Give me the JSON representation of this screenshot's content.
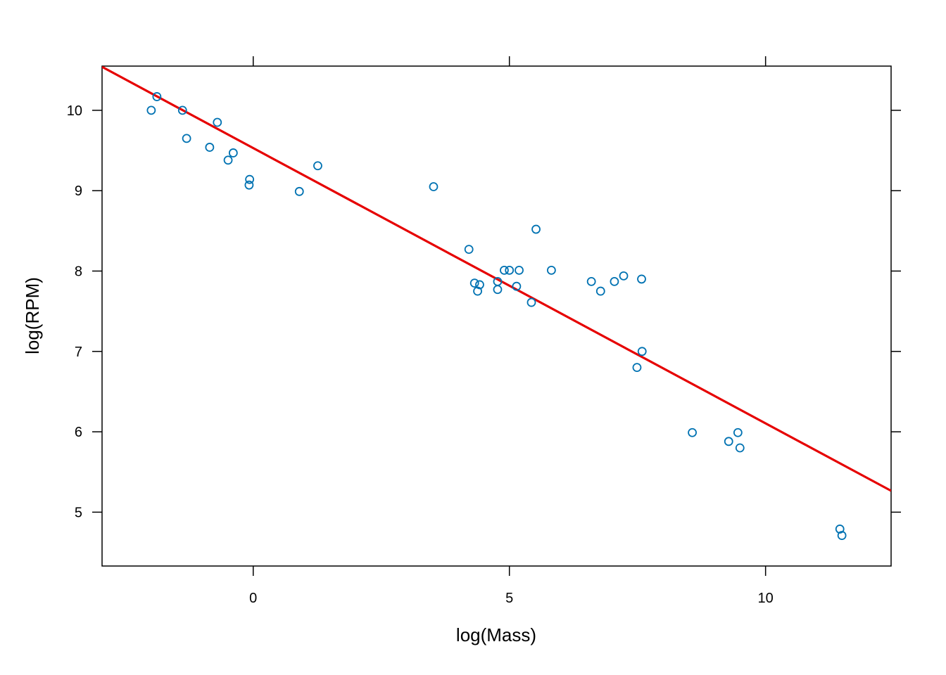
{
  "chart_data": {
    "type": "scatter",
    "xlabel": "log(Mass)",
    "ylabel": "log(RPM)",
    "xlim": [
      -2.95,
      12.45
    ],
    "ylim": [
      4.33,
      10.55
    ],
    "x_ticks": [
      0,
      5,
      10
    ],
    "y_ticks": [
      5,
      6,
      7,
      8,
      9,
      10
    ],
    "grid": false,
    "colors": {
      "points": "#0072b2",
      "fit_line": "#e60000",
      "axis": "#000000"
    },
    "points": [
      {
        "x": -1.99,
        "y": 10.0
      },
      {
        "x": -1.88,
        "y": 10.17
      },
      {
        "x": -1.38,
        "y": 10.0
      },
      {
        "x": -1.3,
        "y": 9.65
      },
      {
        "x": -0.85,
        "y": 9.54
      },
      {
        "x": -0.7,
        "y": 9.85
      },
      {
        "x": -0.49,
        "y": 9.38
      },
      {
        "x": -0.39,
        "y": 9.47
      },
      {
        "x": -0.07,
        "y": 9.14
      },
      {
        "x": -0.08,
        "y": 9.07
      },
      {
        "x": 0.9,
        "y": 8.99
      },
      {
        "x": 1.26,
        "y": 9.31
      },
      {
        "x": 3.52,
        "y": 9.05
      },
      {
        "x": 4.21,
        "y": 8.27
      },
      {
        "x": 4.32,
        "y": 7.85
      },
      {
        "x": 4.38,
        "y": 7.75
      },
      {
        "x": 4.42,
        "y": 7.83
      },
      {
        "x": 4.77,
        "y": 7.87
      },
      {
        "x": 4.77,
        "y": 7.77
      },
      {
        "x": 4.9,
        "y": 8.01
      },
      {
        "x": 5.0,
        "y": 8.01
      },
      {
        "x": 5.14,
        "y": 7.81
      },
      {
        "x": 5.19,
        "y": 8.01
      },
      {
        "x": 5.43,
        "y": 7.61
      },
      {
        "x": 5.52,
        "y": 8.52
      },
      {
        "x": 5.82,
        "y": 8.01
      },
      {
        "x": 6.6,
        "y": 7.87
      },
      {
        "x": 6.78,
        "y": 7.75
      },
      {
        "x": 7.05,
        "y": 7.87
      },
      {
        "x": 7.23,
        "y": 7.94
      },
      {
        "x": 7.49,
        "y": 6.8
      },
      {
        "x": 7.58,
        "y": 7.9
      },
      {
        "x": 7.59,
        "y": 7.0
      },
      {
        "x": 8.57,
        "y": 5.99
      },
      {
        "x": 9.28,
        "y": 5.88
      },
      {
        "x": 9.46,
        "y": 5.99
      },
      {
        "x": 9.5,
        "y": 5.8
      },
      {
        "x": 11.45,
        "y": 4.79
      },
      {
        "x": 11.49,
        "y": 4.71
      }
    ],
    "fit_line": {
      "intercept": 9.53,
      "slope": -0.3425
    }
  }
}
